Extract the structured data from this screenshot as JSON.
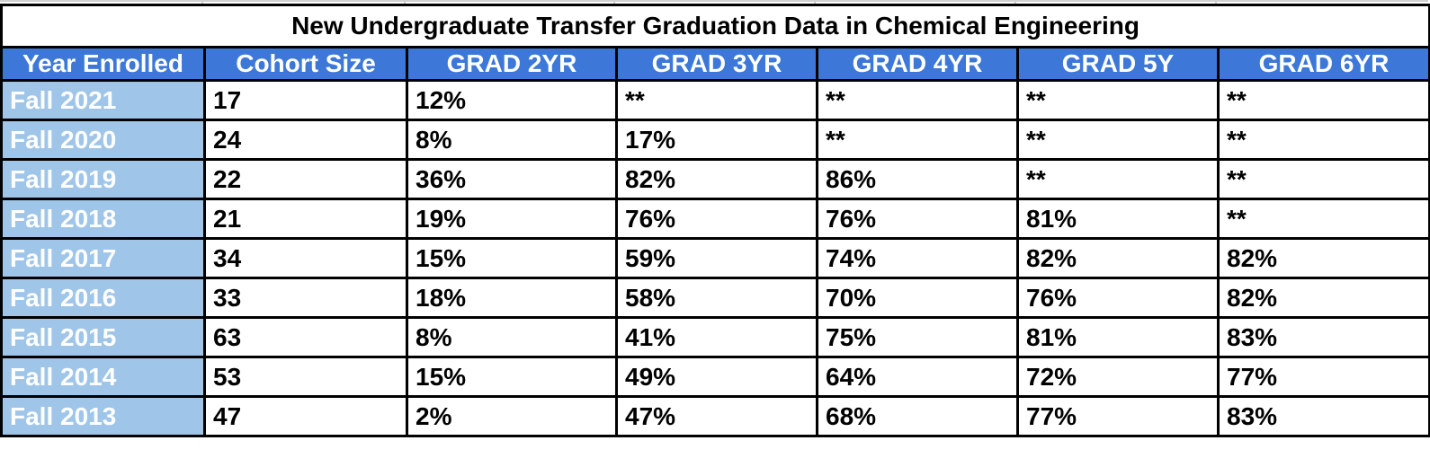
{
  "colors": {
    "header_bg": "#3d78d8",
    "year_column_bg": "#9fc5e8",
    "border": "#000000",
    "gridline": "#d0d0d0"
  },
  "chart_data": {
    "type": "table",
    "title": "New Undergraduate Transfer Graduation Data in Chemical Engineering",
    "columns": [
      "Year Enrolled",
      "Cohort Size",
      "GRAD 2YR",
      "GRAD 3YR",
      "GRAD 4YR",
      "GRAD 5Y",
      "GRAD 6YR"
    ],
    "rows": [
      [
        "Fall 2021",
        "17",
        "12%",
        "**",
        "**",
        "**",
        "**"
      ],
      [
        "Fall 2020",
        "24",
        "8%",
        "17%",
        "**",
        "**",
        "**"
      ],
      [
        "Fall 2019",
        "22",
        "36%",
        "82%",
        "86%",
        "**",
        "**"
      ],
      [
        "Fall 2018",
        "21",
        "19%",
        "76%",
        "76%",
        "81%",
        "**"
      ],
      [
        "Fall 2017",
        "34",
        "15%",
        "59%",
        "74%",
        "82%",
        "82%"
      ],
      [
        "Fall 2016",
        "33",
        "18%",
        "58%",
        "70%",
        "76%",
        "82%"
      ],
      [
        "Fall 2015",
        "63",
        "8%",
        "41%",
        "75%",
        "81%",
        "83%"
      ],
      [
        "Fall 2014",
        "53",
        "15%",
        "49%",
        "64%",
        "72%",
        "77%"
      ],
      [
        "Fall 2013",
        "47",
        "2%",
        "47%",
        "68%",
        "77%",
        "83%"
      ]
    ]
  }
}
